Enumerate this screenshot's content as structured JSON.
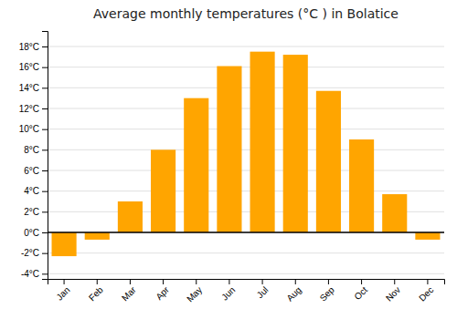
{
  "chart_data": {
    "type": "bar",
    "title": "Average monthly temperatures (°C ) in Bolatice",
    "categories": [
      "Jan",
      "Feb",
      "Mar",
      "Apr",
      "May",
      "Jun",
      "Jul",
      "Aug",
      "Sep",
      "Oct",
      "Nov",
      "Dec"
    ],
    "values": [
      -2.3,
      -0.7,
      3.0,
      8.0,
      13.0,
      16.1,
      17.5,
      17.2,
      13.7,
      9.0,
      3.7,
      -0.7
    ],
    "color": "#FFA500",
    "ylim": [
      -4.5,
      19.5
    ],
    "yticks": [
      {
        "value": -4,
        "label": "-4°C"
      },
      {
        "value": -2,
        "label": "-2°C"
      },
      {
        "value": 0,
        "label": "0°C"
      },
      {
        "value": 2,
        "label": "2°C"
      },
      {
        "value": 4,
        "label": "4°C"
      },
      {
        "value": 6,
        "label": "6°C"
      },
      {
        "value": 8,
        "label": "8°C"
      },
      {
        "value": 10,
        "label": "10°C"
      },
      {
        "value": 12,
        "label": "12°C"
      },
      {
        "value": 14,
        "label": "14°C"
      },
      {
        "value": 16,
        "label": "16°C"
      },
      {
        "value": 18,
        "label": "18°C"
      }
    ],
    "grid": true
  }
}
